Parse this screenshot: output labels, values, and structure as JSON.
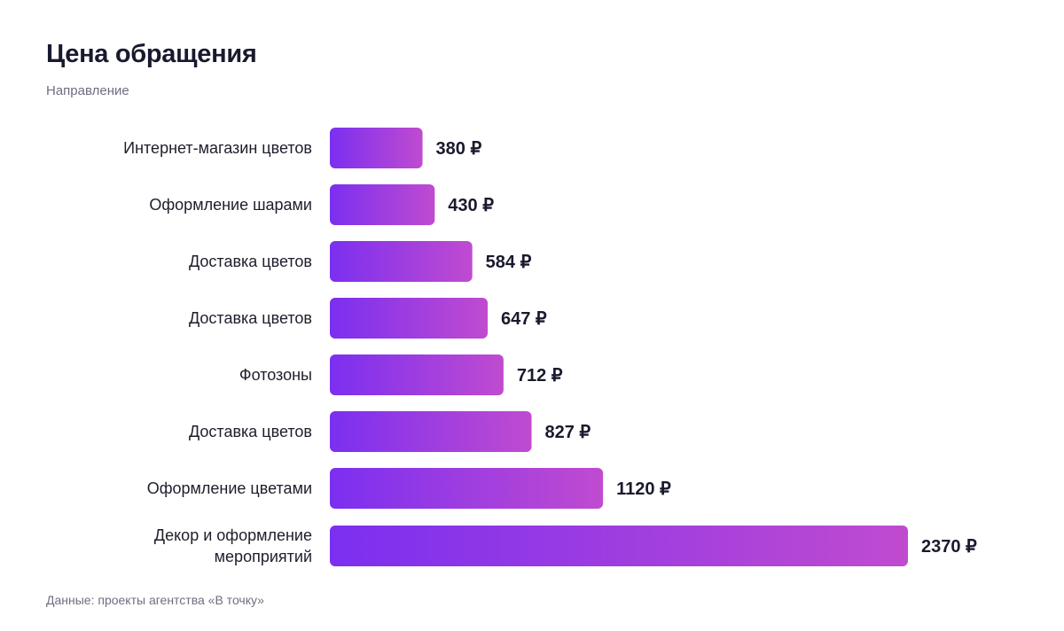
{
  "header": {
    "title": "Цена обращения",
    "subtitle": "Направление"
  },
  "footer": {
    "source": "Данные: проекты агентства «В точку»"
  },
  "colors": {
    "bar_start": "#7b2ff0",
    "bar_end": "#c04bd0",
    "text": "#1a1a2e",
    "muted": "#6e6e82"
  },
  "chart_data": {
    "type": "bar",
    "orientation": "horizontal",
    "title": "Цена обращения",
    "subtitle": "Направление",
    "unit": "₽",
    "categories": [
      "Интернет-магазин цветов",
      "Оформление шарами",
      "Доставка цветов",
      "Доставка цветов",
      "Фотозоны",
      "Доставка цветов",
      "Оформление цветами",
      "Декор и оформление мероприятий"
    ],
    "category_lines": [
      [
        "Интернет-магазин цветов"
      ],
      [
        "Оформление шарами"
      ],
      [
        "Доставка цветов"
      ],
      [
        "Доставка цветов"
      ],
      [
        "Фотозоны"
      ],
      [
        "Доставка цветов"
      ],
      [
        "Оформление цветами"
      ],
      [
        "Декор и оформление",
        "мероприятий"
      ]
    ],
    "values": [
      380,
      430,
      584,
      647,
      712,
      827,
      1120,
      2370
    ],
    "value_labels": [
      "380 ₽",
      "430 ₽",
      "584 ₽",
      "647 ₽",
      "712 ₽",
      "827 ₽",
      "1120 ₽",
      "2370 ₽"
    ],
    "grid": false,
    "legend": "none"
  }
}
